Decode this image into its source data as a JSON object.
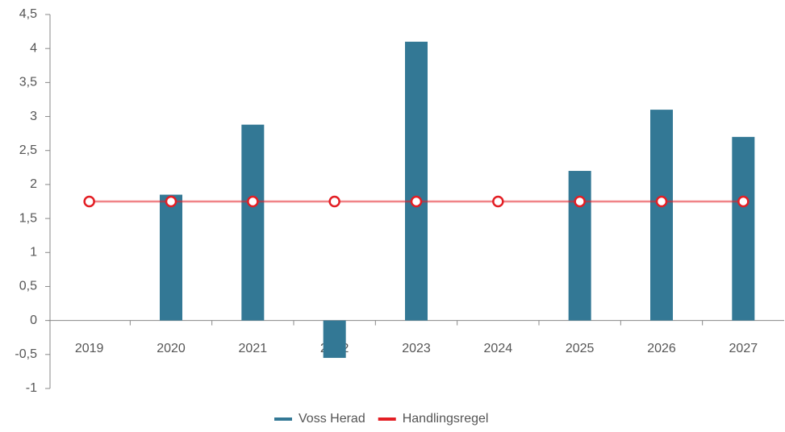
{
  "chart_data": {
    "type": "bar",
    "categories": [
      "2019",
      "2020",
      "2021",
      "2022",
      "2023",
      "2024",
      "2025",
      "2026",
      "2027"
    ],
    "series": [
      {
        "name": "Voss Herad",
        "type": "bar",
        "color": "#337895",
        "values": [
          null,
          1.85,
          2.88,
          -0.55,
          4.1,
          null,
          2.2,
          3.1,
          2.7
        ]
      },
      {
        "name": "Handlingsregel",
        "type": "line",
        "color": "#e31e24",
        "values": [
          1.75,
          1.75,
          1.75,
          1.75,
          1.75,
          1.75,
          1.75,
          1.75,
          1.75
        ]
      }
    ],
    "ylim": [
      -1,
      4.5
    ],
    "yticks": [
      -1,
      {
        "value": -0.5,
        "label": "-0,5"
      },
      0,
      {
        "value": 0.5,
        "label": "0,5"
      },
      1,
      {
        "value": 1.5,
        "label": "1,5"
      },
      2,
      {
        "value": 2.5,
        "label": "2,5"
      },
      3,
      {
        "value": 3.5,
        "label": "3,5"
      },
      4,
      {
        "value": 4.5,
        "label": "4,5"
      }
    ],
    "grid": false,
    "legend": "bottom"
  }
}
